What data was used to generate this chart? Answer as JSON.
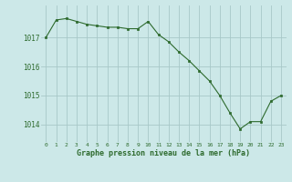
{
  "x": [
    0,
    1,
    2,
    3,
    4,
    5,
    6,
    7,
    8,
    9,
    10,
    11,
    12,
    13,
    14,
    15,
    16,
    17,
    18,
    19,
    20,
    21,
    22,
    23
  ],
  "y": [
    1017.0,
    1017.6,
    1017.65,
    1017.55,
    1017.45,
    1017.4,
    1017.35,
    1017.35,
    1017.3,
    1017.3,
    1017.55,
    1017.1,
    1016.85,
    1016.5,
    1016.2,
    1015.85,
    1015.5,
    1015.0,
    1014.4,
    1013.85,
    1014.1,
    1014.1,
    1014.8,
    1015.0
  ],
  "line_color": "#2d6a2d",
  "marker_color": "#2d6a2d",
  "bg_color": "#cce8e8",
  "grid_color": "#a8c8c8",
  "xlabel": "Graphe pression niveau de la mer (hPa)",
  "xlabel_color": "#2d6a2d",
  "tick_color": "#2d6a2d",
  "ylim": [
    1013.4,
    1018.1
  ],
  "xlim": [
    -0.5,
    23.5
  ],
  "yticks": [
    1014,
    1015,
    1016,
    1017
  ],
  "xticks": [
    0,
    1,
    2,
    3,
    4,
    5,
    6,
    7,
    8,
    9,
    10,
    11,
    12,
    13,
    14,
    15,
    16,
    17,
    18,
    19,
    20,
    21,
    22,
    23
  ]
}
